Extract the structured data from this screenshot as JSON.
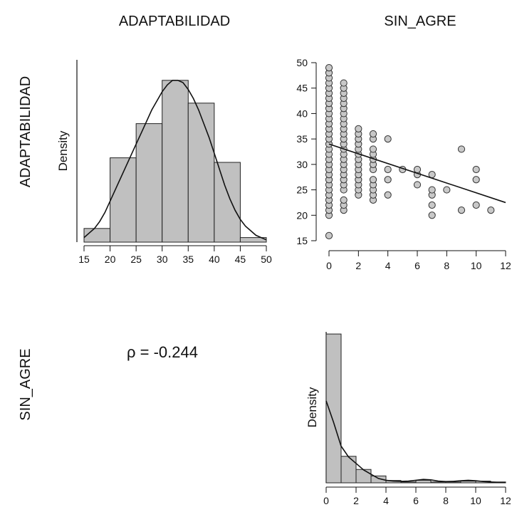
{
  "variables": [
    "ADAPTABILIDAD",
    "SIN_AGRE"
  ],
  "correlation_text": "ρ = -0.244",
  "colors": {
    "bar_fill": "#c0c0c0",
    "bar_stroke": "#222222",
    "point_fill": "#c8c8c8",
    "line": "#111111"
  },
  "chart_data": [
    {
      "type": "bar",
      "panel": "ADAPTABILIDAD histogram",
      "ylabel": "Density",
      "bins": [
        [
          15,
          20
        ],
        [
          20,
          25
        ],
        [
          25,
          30
        ],
        [
          30,
          35
        ],
        [
          35,
          40
        ],
        [
          40,
          45
        ],
        [
          45,
          50
        ]
      ],
      "values": [
        0.006,
        0.037,
        0.052,
        0.071,
        0.061,
        0.035,
        0.002
      ],
      "ylim": [
        0,
        0.08
      ],
      "xlim": [
        15,
        50
      ],
      "xticks": [
        "15",
        "20",
        "25",
        "30",
        "35",
        "40",
        "45",
        "50"
      ],
      "density_curve": {
        "x": [
          15,
          16,
          17,
          18,
          19,
          20,
          21,
          22,
          23,
          24,
          25,
          26,
          27,
          28,
          29,
          30,
          31,
          32,
          33,
          34,
          35,
          36,
          37,
          38,
          39,
          40,
          41,
          42,
          43,
          44,
          45,
          46,
          47,
          48,
          49,
          50
        ],
        "y": [
          0.002,
          0.004,
          0.006,
          0.009,
          0.013,
          0.018,
          0.023,
          0.028,
          0.033,
          0.038,
          0.043,
          0.048,
          0.053,
          0.058,
          0.062,
          0.066,
          0.069,
          0.071,
          0.071,
          0.07,
          0.067,
          0.063,
          0.058,
          0.052,
          0.046,
          0.039,
          0.032,
          0.025,
          0.019,
          0.014,
          0.01,
          0.007,
          0.005,
          0.003,
          0.002,
          0.001
        ]
      }
    },
    {
      "type": "scatter",
      "panel": "ADAPTABILIDAD vs SIN_AGRE",
      "xlim": [
        0,
        12
      ],
      "ylim": [
        15,
        50
      ],
      "xticks": [
        "0",
        "2",
        "4",
        "6",
        "8",
        "10",
        "12"
      ],
      "yticks": [
        "15",
        "20",
        "25",
        "30",
        "35",
        "40",
        "45",
        "50"
      ],
      "x": [
        0,
        0,
        0,
        0,
        0,
        0,
        0,
        0,
        0,
        0,
        0,
        0,
        0,
        0,
        0,
        0,
        0,
        0,
        0,
        0,
        0,
        0,
        0,
        0,
        0,
        0,
        0,
        0,
        0,
        0,
        0,
        1,
        1,
        1,
        1,
        1,
        1,
        1,
        1,
        1,
        1,
        1,
        1,
        1,
        1,
        1,
        1,
        1,
        1,
        1,
        1,
        1,
        1,
        1,
        1,
        1,
        2,
        2,
        2,
        2,
        2,
        2,
        2,
        2,
        2,
        2,
        2,
        2,
        2,
        2,
        3,
        3,
        3,
        3,
        3,
        3,
        3,
        3,
        3,
        3,
        3,
        3,
        4,
        4,
        4,
        4,
        5,
        6,
        6,
        6,
        7,
        7,
        7,
        7,
        7,
        8,
        9,
        9,
        10,
        10,
        10,
        11
      ],
      "y": [
        16,
        20,
        21,
        22,
        23,
        24,
        25,
        26,
        27,
        28,
        29,
        30,
        31,
        32,
        33,
        34,
        35,
        36,
        37,
        38,
        39,
        40,
        41,
        42,
        43,
        44,
        45,
        46,
        47,
        48,
        49,
        21,
        22,
        23,
        25,
        26,
        27,
        28,
        29,
        30,
        31,
        32,
        33,
        34,
        35,
        36,
        37,
        38,
        39,
        40,
        41,
        42,
        43,
        44,
        45,
        46,
        24,
        25,
        26,
        27,
        28,
        29,
        30,
        31,
        32,
        33,
        34,
        35,
        36,
        37,
        23,
        24,
        25,
        26,
        27,
        29,
        30,
        31,
        32,
        33,
        35,
        36,
        24,
        27,
        29,
        35,
        29,
        28,
        29,
        26,
        20,
        22,
        24,
        25,
        28,
        25,
        21,
        33,
        22,
        27,
        29,
        21
      ],
      "regression_line": {
        "x": [
          0,
          12
        ],
        "y": [
          34,
          22.5
        ]
      }
    },
    {
      "type": "bar",
      "panel": "SIN_AGRE histogram",
      "ylabel": "Density",
      "bins": [
        [
          0,
          1
        ],
        [
          1,
          2
        ],
        [
          2,
          3
        ],
        [
          3,
          4
        ],
        [
          4,
          5
        ],
        [
          5,
          6
        ],
        [
          6,
          7
        ],
        [
          7,
          8
        ],
        [
          8,
          9
        ],
        [
          9,
          10
        ],
        [
          10,
          11
        ],
        [
          11,
          12
        ]
      ],
      "values": [
        0.69,
        0.123,
        0.062,
        0.032,
        0.011,
        0.004,
        0.012,
        0.004,
        0.004,
        0.008,
        0.008,
        0.004
      ],
      "ylim": [
        0,
        0.7
      ],
      "xlim": [
        0,
        12
      ],
      "xticks": [
        "0",
        "2",
        "4",
        "6",
        "8",
        "10",
        "12"
      ],
      "density_curve": {
        "x": [
          0,
          0.5,
          1,
          1.5,
          2,
          2.5,
          3,
          3.5,
          4,
          4.5,
          5,
          5.5,
          6,
          6.5,
          7,
          7.5,
          8,
          8.5,
          9,
          9.5,
          10,
          10.5,
          11,
          11.5,
          12
        ],
        "y": [
          0.38,
          0.28,
          0.17,
          0.12,
          0.09,
          0.06,
          0.04,
          0.02,
          0.012,
          0.008,
          0.007,
          0.008,
          0.012,
          0.016,
          0.014,
          0.008,
          0.006,
          0.007,
          0.01,
          0.012,
          0.01,
          0.006,
          0.004,
          0.002,
          0.001
        ]
      }
    }
  ]
}
